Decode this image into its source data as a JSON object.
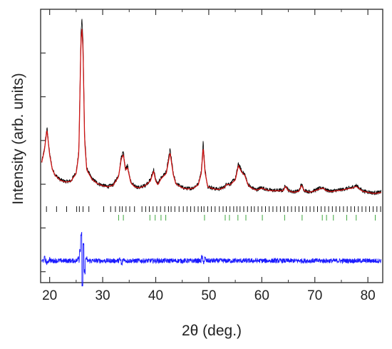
{
  "chart_data": {
    "type": "line",
    "title": "",
    "xlabel": "2θ (deg.)",
    "ylabel": "Intensity (arb. units)",
    "xlim": [
      18.3,
      82.8
    ],
    "xticks": [
      "20",
      "30",
      "40",
      "50",
      "60",
      "70",
      "80"
    ],
    "ylim": [
      -2.5,
      10
    ],
    "y_tick_labels": "none",
    "grid": false,
    "legend": "none",
    "series": [
      {
        "role": "observed",
        "color": "#000000",
        "x": [
          18.5,
          19.0,
          19.5,
          20.0,
          20.5,
          21,
          22,
          23,
          24,
          25,
          25.5,
          25.9,
          26.1,
          26.3,
          26.6,
          27,
          28,
          29,
          30,
          31,
          32,
          33,
          33.5,
          33.9,
          34.3,
          34.7,
          35.3,
          36,
          37,
          38,
          39,
          39.6,
          40,
          40.4,
          41,
          42,
          42.7,
          43.3,
          43.8,
          45,
          46,
          47,
          48,
          48.6,
          48.95,
          49.3,
          49.8,
          51,
          52,
          53,
          53.4,
          54,
          55,
          55.6,
          56.2,
          56.8,
          57.4,
          58,
          59,
          60,
          61,
          62,
          63,
          64,
          64.5,
          65,
          66,
          67,
          67.5,
          68,
          69,
          70,
          71,
          71.6,
          72,
          73,
          74,
          75,
          76,
          77,
          77.8,
          78.5,
          79,
          80,
          81,
          82,
          82.5
        ],
        "y": [
          3.0,
          3.6,
          4.6,
          3.4,
          2.7,
          2.45,
          2.2,
          2.12,
          2.15,
          2.55,
          3.5,
          8.9,
          9.6,
          8.6,
          4.2,
          2.7,
          2.25,
          2.05,
          1.95,
          1.9,
          1.98,
          2.4,
          3.25,
          3.5,
          2.7,
          2.85,
          2.1,
          1.9,
          1.85,
          1.95,
          2.2,
          2.7,
          2.2,
          2.0,
          2.3,
          2.55,
          3.6,
          2.5,
          2.05,
          1.85,
          1.8,
          1.83,
          2.0,
          2.6,
          3.95,
          2.65,
          1.9,
          1.8,
          1.78,
          1.88,
          2.05,
          2.0,
          2.25,
          2.95,
          2.6,
          2.45,
          2.0,
          1.85,
          1.75,
          1.85,
          1.75,
          1.72,
          1.72,
          1.72,
          1.95,
          1.72,
          1.65,
          1.7,
          2.0,
          1.72,
          1.65,
          1.72,
          1.82,
          1.85,
          1.75,
          1.68,
          1.72,
          1.75,
          1.8,
          1.85,
          1.95,
          1.8,
          1.7,
          1.65,
          1.6,
          1.62,
          1.65
        ]
      },
      {
        "role": "calculated",
        "color": "#cc1111",
        "x": [
          18.5,
          19.0,
          19.5,
          20.0,
          20.5,
          21,
          22,
          23,
          24,
          25,
          25.5,
          25.9,
          26.1,
          26.3,
          26.6,
          27,
          28,
          29,
          30,
          31,
          32,
          33,
          33.5,
          33.9,
          34.3,
          34.7,
          35.3,
          36,
          37,
          38,
          39,
          39.6,
          40,
          40.4,
          41,
          42,
          42.7,
          43.3,
          43.8,
          45,
          46,
          47,
          48,
          48.6,
          48.95,
          49.3,
          49.8,
          51,
          52,
          53,
          53.4,
          54,
          55,
          55.6,
          56.2,
          56.8,
          57.4,
          58,
          59,
          60,
          61,
          62,
          63,
          64,
          64.5,
          65,
          66,
          67,
          67.5,
          68,
          69,
          70,
          71,
          71.6,
          72,
          73,
          74,
          75,
          76,
          77,
          77.8,
          78.5,
          79,
          80,
          81,
          82,
          82.5
        ],
        "y": [
          3.0,
          3.55,
          4.5,
          3.35,
          2.68,
          2.42,
          2.18,
          2.1,
          2.13,
          2.5,
          3.4,
          8.6,
          9.1,
          8.2,
          4.0,
          2.65,
          2.22,
          2.03,
          1.93,
          1.88,
          1.96,
          2.35,
          3.15,
          3.35,
          2.65,
          2.75,
          2.08,
          1.88,
          1.83,
          1.93,
          2.15,
          2.6,
          2.15,
          1.98,
          2.25,
          2.5,
          3.45,
          2.45,
          2.02,
          1.83,
          1.78,
          1.81,
          1.97,
          2.5,
          3.7,
          2.55,
          1.88,
          1.78,
          1.76,
          1.86,
          2.0,
          1.97,
          2.2,
          2.85,
          2.55,
          2.4,
          1.97,
          1.83,
          1.73,
          1.82,
          1.73,
          1.7,
          1.7,
          1.7,
          1.9,
          1.7,
          1.63,
          1.68,
          1.95,
          1.7,
          1.63,
          1.7,
          1.79,
          1.82,
          1.72,
          1.66,
          1.7,
          1.73,
          1.78,
          1.82,
          1.9,
          1.77,
          1.68,
          1.63,
          1.58,
          1.6,
          1.63
        ]
      },
      {
        "role": "difference",
        "color": "#1a1aff",
        "baseline": -1.5,
        "x": [
          19,
          19.5,
          20,
          25.4,
          25.7,
          25.95,
          26.15,
          26.35,
          26.6,
          26.9,
          33.2,
          33.6,
          34,
          48.7,
          49.0,
          49.3
        ],
        "y": [
          -1.38,
          -1.62,
          -1.42,
          -1.3,
          -1.0,
          -0.3,
          -2.6,
          -0.8,
          -2.0,
          -1.4,
          -1.45,
          -1.65,
          -1.42,
          -1.35,
          -1.55,
          -1.4
        ]
      }
    ],
    "reflection_markers": [
      {
        "row": 1,
        "color": "#000000",
        "positions": [
          19.4,
          21.3,
          23.2,
          25.1,
          25.6,
          26.3,
          27.4,
          30.2,
          31.5,
          32.4,
          33.2,
          33.7,
          34.4,
          35.1,
          36.0,
          37.4,
          38.1,
          38.8,
          39.5,
          40.2,
          40.9,
          41.7,
          42.4,
          42.9,
          43.6,
          44.4,
          45.2,
          45.9,
          46.6,
          47.3,
          48.0,
          48.6,
          49.1,
          49.8,
          50.5,
          51.2,
          52.0,
          52.7,
          53.3,
          54.0,
          54.7,
          55.3,
          55.9,
          56.6,
          57.3,
          58.0,
          58.6,
          59.3,
          60.0,
          60.7,
          61.4,
          62.1,
          62.8,
          63.5,
          64.2,
          64.9,
          65.6,
          66.3,
          67.0,
          67.7,
          68.4,
          69.1,
          69.8,
          70.5,
          71.2,
          71.9,
          72.6,
          73.3,
          74.0,
          74.7,
          75.4,
          76.1,
          76.8,
          77.5,
          78.2,
          78.9,
          79.6,
          80.3,
          81.0,
          81.7,
          82.4
        ]
      },
      {
        "row": 2,
        "color": "#2a9d2a",
        "positions": [
          33.0,
          33.9,
          38.9,
          39.9,
          41.0,
          41.9,
          49.2,
          53.1,
          53.9,
          55.5,
          57.0,
          60.1,
          64.3,
          67.6,
          71.4,
          72.2,
          73.5,
          76.0,
          77.8,
          81.4
        ]
      }
    ]
  }
}
